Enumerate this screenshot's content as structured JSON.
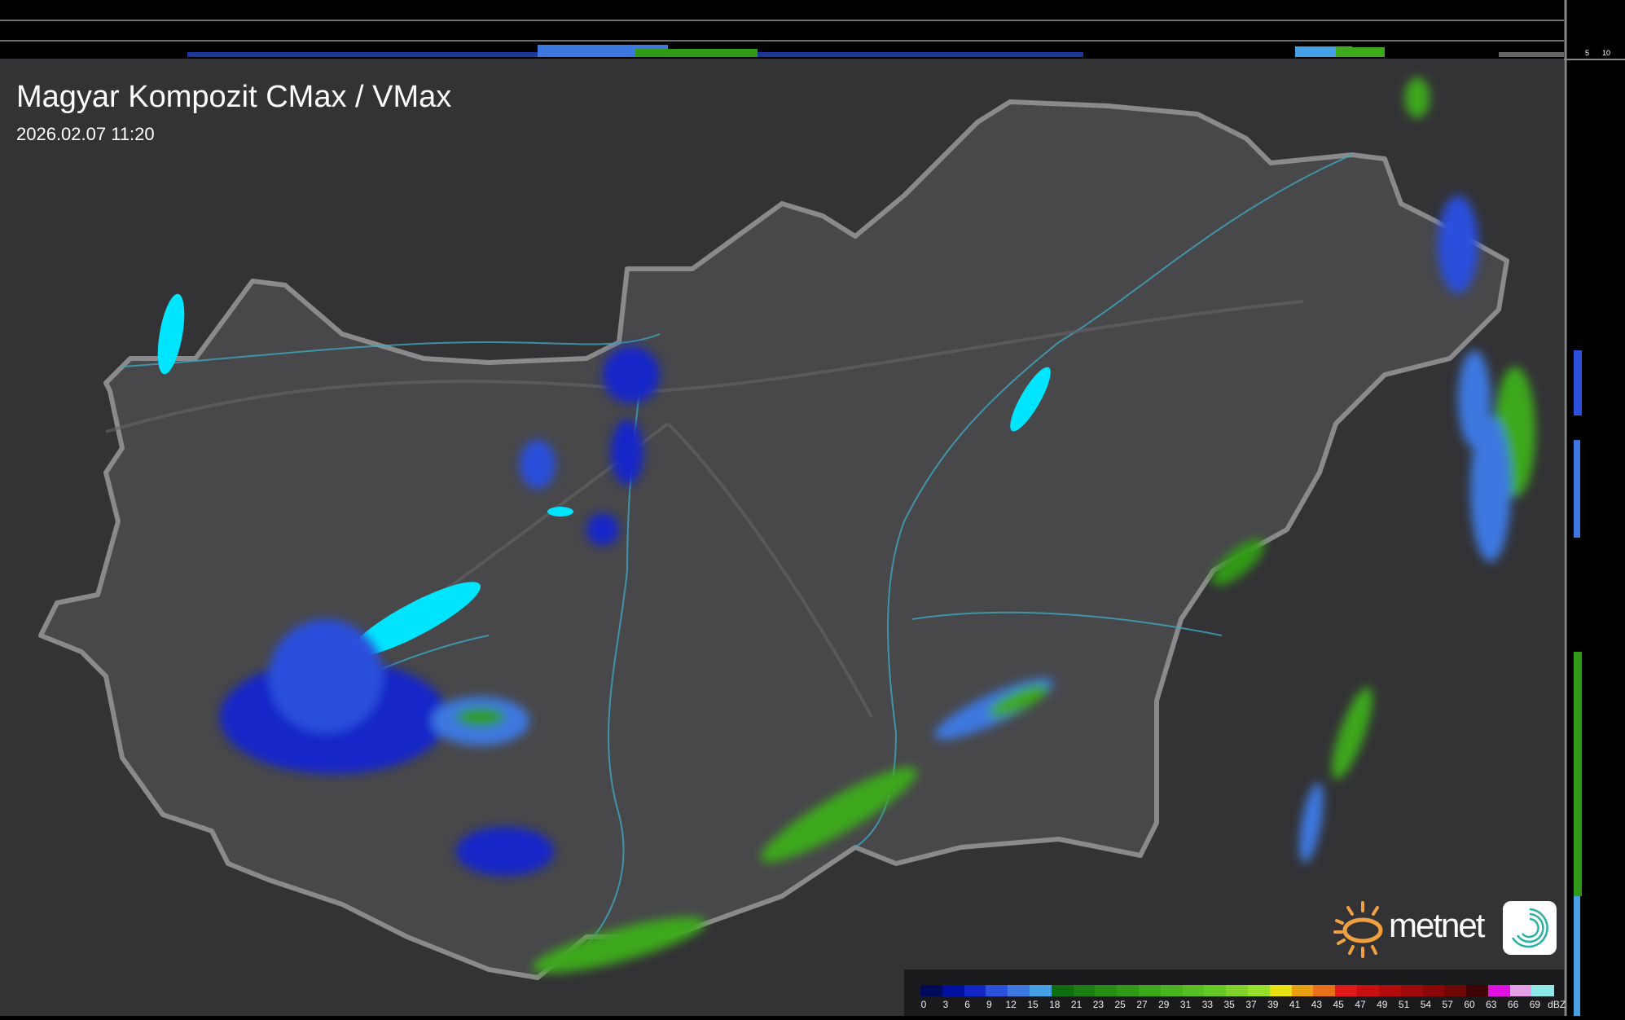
{
  "header": {
    "title": "Magyar Kompozit CMax / VMax",
    "timestamp": "2026.02.07 11:20"
  },
  "profile_axes": {
    "vertical_ticks": [
      "10",
      "5"
    ],
    "horizontal_ticks": [
      "5",
      "10"
    ]
  },
  "legend": {
    "unit": "dBZ",
    "labels": [
      "0",
      "3",
      "6",
      "9",
      "12",
      "15",
      "18",
      "21",
      "23",
      "25",
      "27",
      "29",
      "31",
      "33",
      "35",
      "37",
      "39",
      "41",
      "43",
      "45",
      "47",
      "49",
      "51",
      "54",
      "57",
      "60",
      "63",
      "66",
      "69"
    ],
    "colors": [
      "#000a5a",
      "#0010a0",
      "#1428c8",
      "#2a50dc",
      "#3c78e0",
      "#46a0e6",
      "#0f6e10",
      "#1a7e12",
      "#258c14",
      "#309a18",
      "#3ca81c",
      "#4ab420",
      "#58be22",
      "#66c824",
      "#80d22a",
      "#96e02c",
      "#e8e012",
      "#e8a010",
      "#e87018",
      "#e01818",
      "#c81010",
      "#b40c0c",
      "#a00a0a",
      "#8c0808",
      "#6e0606",
      "#400404",
      "#e010e0",
      "#e8a0e8",
      "#90e8e8"
    ]
  },
  "colors": {
    "map_bg": "#3a3a3d",
    "land_inside": "#454548",
    "border": "#8a8a8a",
    "rivers": "#3fa8c0",
    "lakes": "#00e5ff",
    "logo_sun": "#f0a040"
  },
  "logo": {
    "brand": "metnet"
  }
}
